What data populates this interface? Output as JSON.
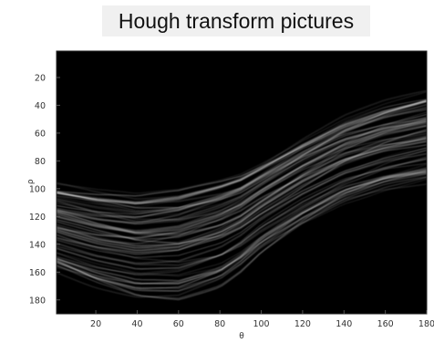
{
  "chart_data": {
    "type": "heatmap",
    "title": "Hough transform pictures",
    "xlabel": "θ",
    "ylabel": "ρ",
    "xlim": [
      1,
      180
    ],
    "ylim": [
      1,
      190
    ],
    "y_reversed": true,
    "colormap": "gray",
    "background_color": "#000000",
    "x_ticks": [
      20,
      40,
      60,
      80,
      100,
      120,
      140,
      160,
      180
    ],
    "y_ticks": [
      20,
      40,
      60,
      80,
      100,
      120,
      140,
      160,
      180
    ],
    "curve_band": {
      "theta": [
        0,
        20,
        40,
        60,
        80,
        90,
        100,
        120,
        140,
        160,
        180
      ],
      "rho_upper": [
        97,
        102,
        105,
        101,
        93,
        88,
        80,
        63,
        48,
        38,
        31
      ],
      "rho_lower": [
        157,
        168,
        176,
        177,
        168,
        158,
        145,
        126,
        110,
        100,
        94
      ]
    }
  }
}
